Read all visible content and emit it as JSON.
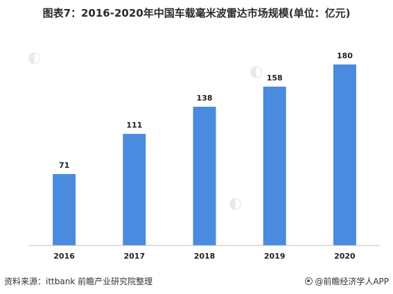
{
  "title": "图表7：2016-2020年中国车载毫米波雷达市场规模(单位：亿元)",
  "footer": {
    "source": "资料来源：ittbank 前瞻产业研究院整理",
    "brand": "@前瞻经济学人APP",
    "brand_icon": "brand-logo-icon"
  },
  "chart_data": {
    "type": "bar",
    "categories": [
      "2016",
      "2017",
      "2018",
      "2019",
      "2020"
    ],
    "values": [
      71,
      111,
      138,
      158,
      180
    ],
    "ylim": [
      0,
      200
    ],
    "grid": false,
    "legend": "none",
    "color": "#4a8be0"
  }
}
